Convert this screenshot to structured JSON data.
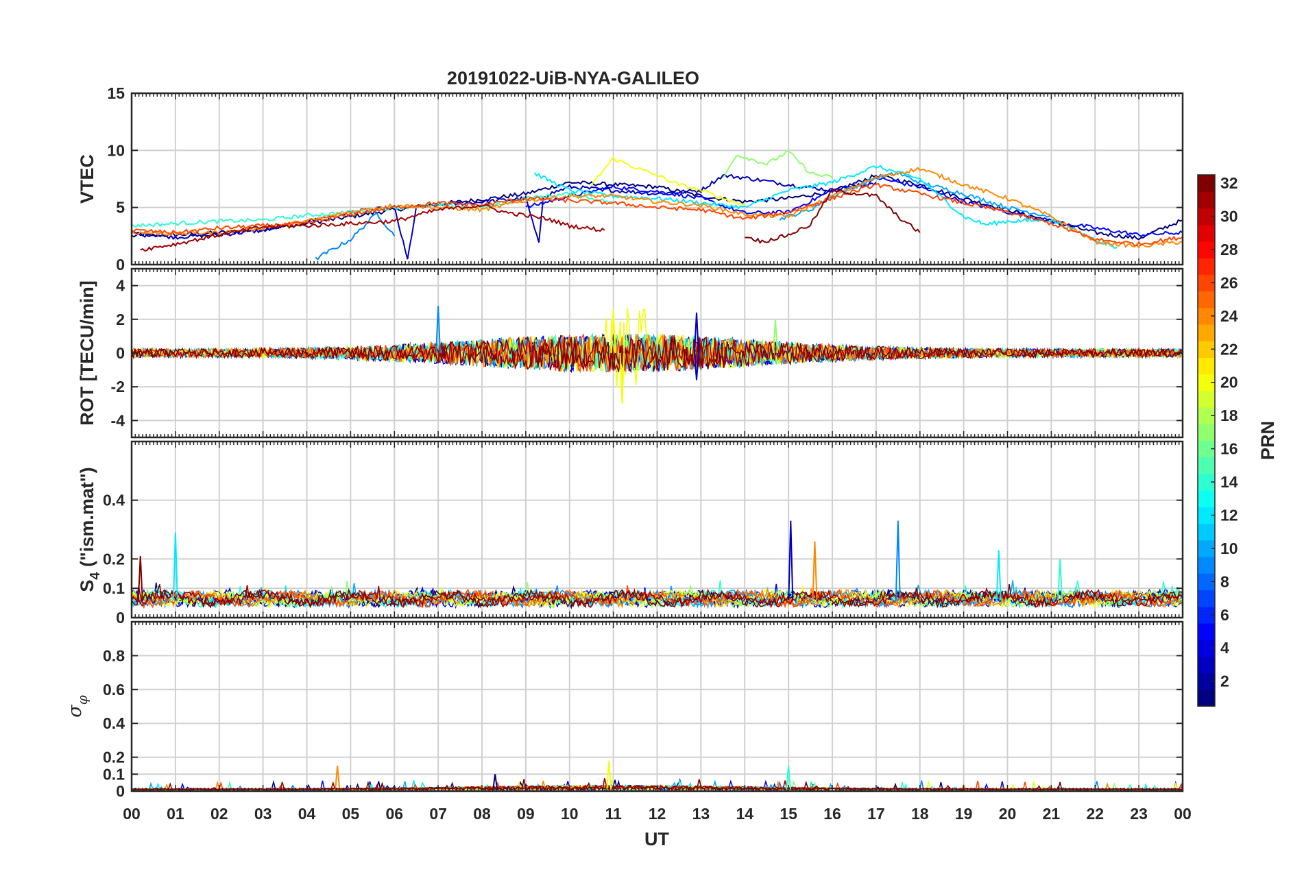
{
  "chart_data": {
    "type": "line",
    "title": "20191022-UiB-NYA-GALILEO",
    "xlabel": "UT",
    "x_tick_labels": [
      "00",
      "01",
      "02",
      "03",
      "04",
      "05",
      "06",
      "07",
      "08",
      "09",
      "10",
      "11",
      "12",
      "13",
      "14",
      "15",
      "16",
      "17",
      "18",
      "19",
      "20",
      "21",
      "22",
      "23",
      "00"
    ],
    "grid": true,
    "colorbar": {
      "label": "PRN",
      "range": [
        1,
        32
      ],
      "tick_labels": [
        "2",
        "4",
        "6",
        "8",
        "10",
        "12",
        "14",
        "16",
        "18",
        "20",
        "22",
        "24",
        "26",
        "28",
        "30",
        "32"
      ],
      "colormap": "jet"
    },
    "panels": [
      {
        "ylabel": "VTEC",
        "ylim": [
          0,
          15
        ],
        "y_tick_labels": [
          "0",
          "5",
          "10",
          "15"
        ],
        "series": [
          {
            "prn": 1,
            "x": [
              0,
              1,
              2,
              3,
              4,
              5,
              6,
              7,
              8,
              9,
              10,
              11,
              12,
              13,
              14,
              15,
              16,
              17,
              18,
              19,
              20,
              21,
              22,
              23,
              24
            ],
            "y": [
              2.5,
              2.6,
              2.8,
              3.1,
              3.6,
              4.2,
              4.8,
              5.3,
              5.7,
              6.2,
              7.2,
              7.0,
              6.8,
              6.0,
              5.5,
              5.8,
              6.4,
              7.8,
              7.0,
              5.8,
              4.8,
              3.8,
              2.8,
              2.3,
              3.9
            ]
          },
          {
            "prn": 3,
            "x": [
              0,
              1,
              2,
              3,
              4,
              5,
              6,
              6.3,
              6.5,
              7,
              8,
              9,
              9.3,
              9.4,
              10,
              11,
              12,
              13,
              13.5,
              14,
              15,
              16,
              17
            ],
            "y": [
              2.8,
              2.4,
              2.6,
              3.0,
              3.8,
              4.6,
              5.0,
              0.4,
              5.0,
              5.2,
              5.5,
              5.8,
              1.8,
              6.0,
              6.8,
              6.5,
              6.2,
              6.5,
              7.8,
              7.6,
              7.0,
              6.5,
              7.2
            ]
          },
          {
            "prn": 5,
            "x": [
              9.0,
              10,
              11,
              12,
              13,
              14,
              15,
              16,
              16.8,
              17,
              18,
              19,
              20,
              21,
              22,
              23,
              24
            ],
            "y": [
              5.0,
              6.0,
              6.8,
              6.4,
              5.8,
              4.5,
              4.6,
              6.5,
              7.0,
              7.6,
              6.8,
              5.5,
              4.6,
              3.8,
              3.2,
              2.6,
              2.8
            ]
          },
          {
            "prn": 9,
            "x": [
              4.2,
              5,
              5.6,
              6.0
            ],
            "y": [
              0.5,
              2.2,
              4.5,
              2.5
            ]
          },
          {
            "prn": 10,
            "x": [
              14.8,
              15.5,
              16,
              17,
              17.5,
              18,
              19,
              20,
              21
            ],
            "y": [
              4.0,
              4.8,
              6.0,
              7.6,
              8.0,
              7.2,
              6.2,
              5.0,
              4.2
            ]
          },
          {
            "prn": 12,
            "x": [
              9.2,
              10,
              11,
              12,
              13,
              14,
              15,
              16,
              17,
              18,
              19,
              19.5,
              20,
              21,
              22,
              22.5
            ],
            "y": [
              8.0,
              6.5,
              6.0,
              5.8,
              5.4,
              5.0,
              6.5,
              7.2,
              8.6,
              7.5,
              4.2,
              3.5,
              3.8,
              3.9,
              2.2,
              1.5
            ]
          },
          {
            "prn": 14,
            "x": [
              0,
              1,
              2,
              3,
              4,
              5,
              6,
              7,
              8,
              9,
              10,
              11
            ],
            "y": [
              3.4,
              3.6,
              3.8,
              3.9,
              4.3,
              4.6,
              5.0,
              5.2,
              5.0,
              5.8,
              6.2,
              5.4
            ]
          },
          {
            "prn": 17,
            "x": [
              13.5,
              13.8,
              14,
              14.5,
              15,
              15.5,
              16
            ],
            "y": [
              7.5,
              9.6,
              9.4,
              8.8,
              9.9,
              8.0,
              7.6
            ]
          },
          {
            "prn": 20,
            "x": [
              10.5,
              11,
              11.5,
              12,
              12.5,
              13,
              13.5,
              14
            ],
            "y": [
              7.0,
              9.3,
              8.5,
              7.8,
              7.0,
              6.5,
              5.8,
              5.2
            ]
          },
          {
            "prn": 24,
            "x": [
              0,
              1,
              2,
              3,
              4,
              5,
              6,
              7,
              8,
              9,
              10,
              11,
              12,
              13,
              14,
              15,
              16,
              17,
              18,
              19,
              20,
              21,
              22,
              23,
              24
            ],
            "y": [
              2.8,
              2.7,
              2.8,
              3.2,
              3.8,
              4.6,
              5.2,
              5.0,
              4.8,
              5.6,
              6.0,
              6.0,
              5.5,
              5.2,
              4.4,
              4.2,
              6.0,
              7.6,
              8.4,
              7.0,
              5.8,
              4.2,
              2.0,
              1.6,
              2.0
            ]
          },
          {
            "prn": 26,
            "x": [
              0,
              1,
              2,
              3,
              4,
              5,
              6,
              7,
              8,
              9,
              10,
              11,
              12,
              13,
              14,
              15,
              16,
              17,
              18,
              19,
              20,
              21,
              22,
              23,
              24
            ],
            "y": [
              3.0,
              2.8,
              3.2,
              3.4,
              3.6,
              4.4,
              5.0,
              5.4,
              5.2,
              5.8,
              5.6,
              5.4,
              5.0,
              4.8,
              4.0,
              4.6,
              5.8,
              7.0,
              6.2,
              5.4,
              4.6,
              3.6,
              2.2,
              1.8,
              2.4
            ]
          },
          {
            "prn": 31,
            "x": [
              0.2,
              1,
              2,
              3,
              4,
              5,
              6,
              7,
              8,
              8.5,
              9.5,
              10,
              10.8
            ],
            "y": [
              1.3,
              1.8,
              2.6,
              3.3,
              3.4,
              3.6,
              3.8,
              4.8,
              5.2,
              4.6,
              4.0,
              3.4,
              3.0
            ]
          },
          {
            "prn": 32,
            "x": [
              14,
              14.4,
              15,
              15.5,
              16,
              17,
              17.5,
              18
            ],
            "y": [
              2.5,
              2.0,
              2.6,
              3.5,
              6.5,
              6.0,
              4.2,
              2.8
            ]
          }
        ]
      },
      {
        "ylabel": "ROT [TECU/min]",
        "ylim": [
          -5,
          5
        ],
        "y_tick_labels": [
          "-4",
          "-2",
          "0",
          "2",
          "4"
        ],
        "summary": "noise around 0 TECU/min; largest excursions about +2.6 and -3.0 near 11 UT (PRN ~20), +2.8 near 07 UT, +2.4 near 13 UT"
      },
      {
        "ylabel": "S4 (\"ism.mat\")",
        "ylabel_main": "S",
        "ylabel_sub": "4",
        "ylabel_rest": " (\"ism.mat\")",
        "ylim": [
          0,
          0.6
        ],
        "y_tick_labels": [
          "0",
          "0.1",
          "0.2",
          "0.4"
        ],
        "summary": "background 0.04-0.10; spikes about 0.29 at 01 UT, 0.33 at 15 UT, 0.33 at 17.5 UT, 0.26 at 15.6 UT, 0.23 at 19.8 UT"
      },
      {
        "ylabel": "σφ",
        "ylabel_main": "σ",
        "ylabel_sub": "φ",
        "ylim": [
          0,
          1
        ],
        "y_tick_labels": [
          "0",
          "0.1",
          "0.2",
          "0.4",
          "0.6",
          "0.8"
        ],
        "summary": "mostly below 0.05; peaks about 0.18 at 11 UT, 0.15 at 04.7 UT and 15 UT"
      }
    ]
  }
}
